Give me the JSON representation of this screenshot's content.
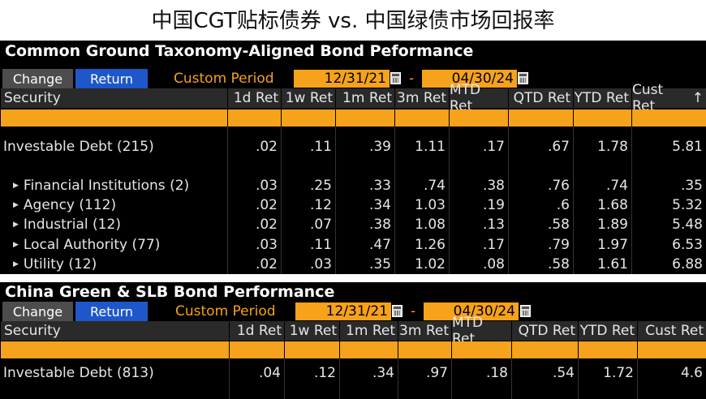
{
  "page_title": "中国CGT贴标债券 vs. 中国绿债市场回报率",
  "panels": [
    {
      "title": "Common Ground Taxonomy-Aligned Bond Peformance",
      "change_label": "Change",
      "return_label": "Return",
      "period_label": "Custom Period",
      "start_date": "12/31/21",
      "end_date": "04/30/24",
      "dash": "-",
      "columns": [
        "Security",
        "1d Ret",
        "1w Ret",
        "1m Ret",
        "3m Ret",
        "MTD Ret",
        "QTD Ret",
        "YTD Ret",
        "Cust Ret"
      ],
      "sort_arrow": "↑",
      "rows": [
        {
          "name": "Investable Debt (215)",
          "expandable": false,
          "values": [
            ".02",
            ".11",
            ".39",
            "1.11",
            ".17",
            ".67",
            "1.78",
            "5.81"
          ]
        },
        {
          "name": "Financial Institutions (2)",
          "expandable": true,
          "values": [
            ".03",
            ".25",
            ".33",
            ".74",
            ".38",
            ".76",
            ".74",
            ".35"
          ]
        },
        {
          "name": "Agency (112)",
          "expandable": true,
          "values": [
            ".02",
            ".12",
            ".34",
            "1.03",
            ".19",
            ".6",
            "1.68",
            "5.32"
          ]
        },
        {
          "name": "Industrial (12)",
          "expandable": true,
          "values": [
            ".02",
            ".07",
            ".38",
            "1.08",
            ".13",
            ".58",
            "1.89",
            "5.48"
          ]
        },
        {
          "name": "Local Authority (77)",
          "expandable": true,
          "values": [
            ".03",
            ".11",
            ".47",
            "1.26",
            ".17",
            ".79",
            "1.97",
            "6.53"
          ]
        },
        {
          "name": "Utility (12)",
          "expandable": true,
          "values": [
            ".02",
            ".03",
            ".35",
            "1.02",
            ".08",
            ".58",
            "1.61",
            "6.88"
          ]
        }
      ]
    },
    {
      "title": "China Green & SLB Bond Performance",
      "change_label": "Change",
      "return_label": "Return",
      "period_label": "Custom Period",
      "start_date": "12/31/21",
      "end_date": "04/30/24",
      "dash": "-",
      "columns": [
        "Security",
        "1d Ret",
        "1w Ret",
        "1m Ret",
        "3m Ret",
        "MTD Ret",
        "QTD Ret",
        "YTD Ret",
        "Cust Ret"
      ],
      "rows": [
        {
          "name": "Investable Debt (813)",
          "expandable": false,
          "values": [
            ".04",
            ".12",
            ".34",
            ".97",
            ".18",
            ".54",
            "1.72",
            "4.6"
          ]
        }
      ]
    }
  ],
  "colors": {
    "accent_orange": "#f6a21a",
    "return_blue": "#1e57c9",
    "change_gray": "#4d4d4d"
  }
}
